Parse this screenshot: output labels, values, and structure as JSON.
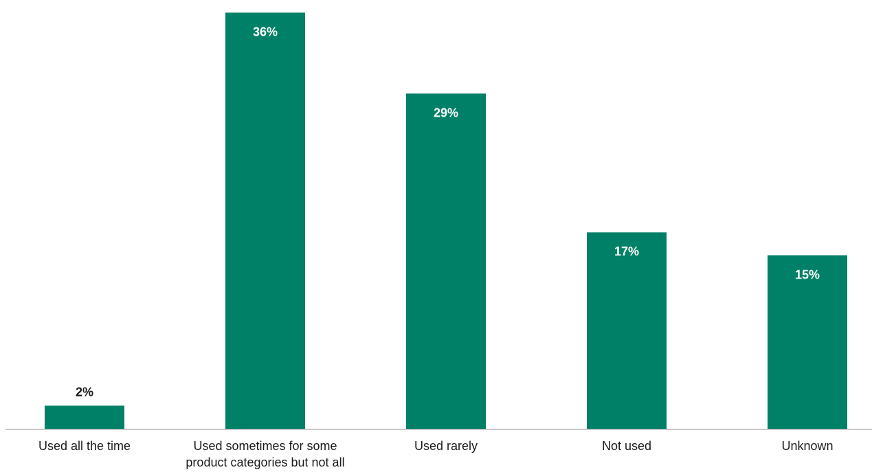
{
  "chart_data": {
    "type": "bar",
    "categories": [
      [
        "Used all the time"
      ],
      [
        "Used sometimes for some",
        "product categories but not all"
      ],
      [
        "Used rarely"
      ],
      [
        "Not used"
      ],
      [
        "Unknown"
      ]
    ],
    "values": [
      2,
      36,
      29,
      17,
      15
    ],
    "value_labels": [
      "2%",
      "36%",
      "29%",
      "17%",
      "15%"
    ],
    "unit": "%",
    "ylim": [
      0,
      36.5
    ],
    "grid": false,
    "legend": "none",
    "title": "",
    "xlabel": "",
    "ylabel": ""
  },
  "colors": {
    "bar": "#008066",
    "axis": "#7f7f7f",
    "label_inside": "#ffffff",
    "label_outside": "#1a1a1a"
  }
}
